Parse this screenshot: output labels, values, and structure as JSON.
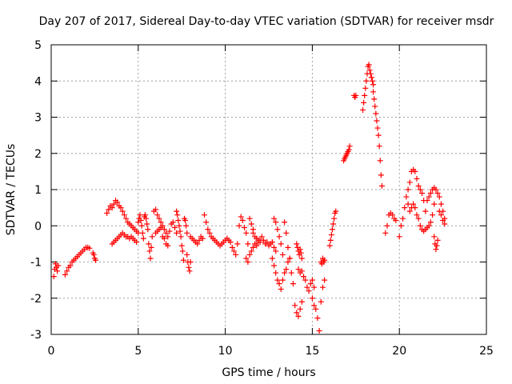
{
  "chart_data": {
    "type": "scatter",
    "title": "Day 207 of 2017, Sidereal Day-to-day VTEC variation (SDTVAR) for receiver msdr",
    "xlabel": "GPS time / hours",
    "ylabel": "SDTVAR / TECUs",
    "xlim": [
      0,
      25
    ],
    "ylim": [
      -3,
      5
    ],
    "xticks": [
      0,
      5,
      10,
      15,
      20,
      25
    ],
    "yticks": [
      -3,
      -2,
      -1,
      0,
      1,
      2,
      3,
      4,
      5
    ],
    "grid": true,
    "marker": "+",
    "marker_color": "#ff0000",
    "series": [
      {
        "name": "SDTVAR",
        "segments": [
          {
            "x": [
              0.15,
              0.2,
              0.25,
              0.3,
              0.35,
              0.4
            ],
            "y": [
              -1.4,
              -1.2,
              -1.05,
              -1.15,
              -1.25,
              -1.1
            ]
          },
          {
            "x": [
              0.8,
              0.9,
              1.0,
              1.1,
              1.2,
              1.3,
              1.4,
              1.5,
              1.6,
              1.7,
              1.8,
              1.9,
              2.0,
              2.1,
              2.2
            ],
            "y": [
              -1.35,
              -1.25,
              -1.15,
              -1.1,
              -1.0,
              -0.95,
              -0.9,
              -0.85,
              -0.8,
              -0.75,
              -0.7,
              -0.65,
              -0.6,
              -0.6,
              -0.62
            ]
          },
          {
            "x": [
              2.4,
              2.45,
              2.5,
              2.55
            ],
            "y": [
              -0.75,
              -0.8,
              -0.9,
              -0.95
            ]
          },
          {
            "x": [
              3.2,
              3.3,
              3.4,
              3.5,
              3.6,
              3.7,
              3.8,
              3.9,
              4.0,
              4.1,
              4.2,
              4.3,
              4.4,
              4.5,
              4.6,
              4.7,
              4.8,
              4.9,
              5.0
            ],
            "y": [
              0.35,
              0.45,
              0.55,
              0.5,
              0.6,
              0.7,
              0.65,
              0.55,
              0.5,
              0.4,
              0.3,
              0.2,
              0.1,
              0.05,
              0.0,
              -0.05,
              -0.1,
              -0.15,
              -0.2
            ]
          },
          {
            "x": [
              3.5,
              3.6,
              3.7,
              3.8,
              3.9,
              4.0,
              4.1,
              4.2,
              4.3,
              4.4,
              4.5,
              4.6,
              4.7,
              4.8,
              4.9
            ],
            "y": [
              -0.5,
              -0.45,
              -0.4,
              -0.35,
              -0.3,
              -0.25,
              -0.2,
              -0.25,
              -0.3,
              -0.3,
              -0.35,
              -0.3,
              -0.35,
              -0.4,
              -0.45
            ]
          },
          {
            "x": [
              5.0,
              5.05,
              5.1,
              5.15,
              5.2,
              5.25,
              5.3,
              5.35,
              5.4,
              5.45,
              5.5,
              5.55,
              5.6,
              5.65,
              5.7,
              5.75,
              5.8
            ],
            "y": [
              0.1,
              0.2,
              0.3,
              0.15,
              0.0,
              -0.2,
              -0.35,
              0.25,
              0.3,
              0.2,
              0.05,
              -0.1,
              -0.5,
              -0.7,
              -0.9,
              -0.6,
              -0.3
            ]
          },
          {
            "x": [
              5.9,
              6.0,
              6.1,
              6.2,
              6.3,
              6.4,
              6.5,
              6.6,
              6.7,
              6.8,
              6.9,
              7.0,
              7.1,
              7.2
            ],
            "y": [
              0.4,
              0.45,
              0.3,
              0.2,
              0.1,
              0.0,
              -0.1,
              -0.2,
              -0.3,
              -0.15,
              0.05,
              0.1,
              -0.05,
              -0.2
            ]
          },
          {
            "x": [
              6.0,
              6.1,
              6.2,
              6.3,
              6.4,
              6.5,
              6.6,
              6.7
            ],
            "y": [
              -0.2,
              -0.15,
              -0.1,
              -0.05,
              -0.3,
              -0.35,
              -0.5,
              -0.55
            ]
          },
          {
            "x": [
              7.2,
              7.25,
              7.3,
              7.35,
              7.4,
              7.45,
              7.5,
              7.55,
              7.6,
              7.65,
              7.7,
              7.75,
              7.8
            ],
            "y": [
              0.4,
              0.3,
              0.15,
              0.0,
              -0.15,
              -0.3,
              -0.55,
              -0.7,
              -0.95,
              0.2,
              0.15,
              0.0,
              -0.2
            ]
          },
          {
            "x": [
              7.8,
              7.85,
              7.9,
              7.95,
              8.0
            ],
            "y": [
              -0.8,
              -1.0,
              -1.15,
              -1.25,
              -1.0
            ]
          },
          {
            "x": [
              8.0,
              8.1,
              8.2,
              8.3,
              8.4,
              8.5,
              8.6,
              8.7
            ],
            "y": [
              -0.3,
              -0.35,
              -0.4,
              -0.45,
              -0.5,
              -0.4,
              -0.3,
              -0.35
            ]
          },
          {
            "x": [
              8.8,
              8.9,
              9.0,
              9.1,
              9.2,
              9.3,
              9.4,
              9.5,
              9.6,
              9.7,
              9.8,
              9.9,
              10.0,
              10.1,
              10.2,
              10.3
            ],
            "y": [
              0.3,
              0.1,
              -0.1,
              -0.2,
              -0.3,
              -0.35,
              -0.4,
              -0.45,
              -0.5,
              -0.55,
              -0.5,
              -0.45,
              -0.4,
              -0.35,
              -0.4,
              -0.45
            ]
          },
          {
            "x": [
              10.4,
              10.5,
              10.6,
              10.7,
              10.8,
              10.9,
              11.0,
              11.1,
              11.2,
              11.3,
              11.4,
              11.5,
              11.6
            ],
            "y": [
              -0.6,
              -0.7,
              -0.8,
              -0.5,
              0.0,
              0.25,
              0.15,
              -0.05,
              -0.2,
              -0.5,
              0.2,
              0.05,
              -0.1
            ]
          },
          {
            "x": [
              11.6,
              11.7,
              11.8,
              11.9,
              12.0,
              12.1,
              12.2,
              12.3,
              12.4,
              12.5,
              12.6,
              12.7,
              12.8,
              12.9
            ],
            "y": [
              -0.2,
              -0.3,
              -0.35,
              -0.4,
              -0.45,
              -0.3,
              -0.4,
              -0.5,
              -0.45,
              -0.55,
              -0.5,
              -0.45,
              -0.6,
              -0.7
            ]
          },
          {
            "x": [
              11.2,
              11.3,
              11.4,
              11.5,
              11.6,
              11.7,
              11.8,
              11.9,
              12.0
            ],
            "y": [
              -0.9,
              -1.0,
              -0.8,
              -0.7,
              -0.6,
              -0.5,
              -0.55,
              -0.45,
              -0.4
            ]
          },
          {
            "x": [
              12.7,
              12.8,
              12.9,
              13.0,
              13.1,
              13.2,
              13.3,
              13.4,
              13.5,
              13.6,
              13.7
            ],
            "y": [
              -0.9,
              -1.1,
              -1.3,
              -1.5,
              -1.6,
              -1.75,
              -1.5,
              -1.3,
              -1.2,
              -1.0,
              -0.9
            ]
          },
          {
            "x": [
              12.8,
              12.9,
              13.0,
              13.1,
              13.2,
              13.3,
              13.4
            ],
            "y": [
              0.2,
              0.1,
              -0.1,
              -0.3,
              -0.5,
              -0.8,
              0.1
            ]
          },
          {
            "x": [
              13.5,
              13.6,
              13.7,
              13.8,
              13.9,
              14.0,
              14.1,
              14.2,
              14.3,
              14.4
            ],
            "y": [
              -0.2,
              -0.6,
              -0.9,
              -1.3,
              -1.6,
              -2.2,
              -2.4,
              -2.5,
              -2.3,
              -2.1
            ]
          },
          {
            "x": [
              14.1,
              14.15,
              14.2,
              14.25,
              14.3,
              14.35,
              14.4
            ],
            "y": [
              -0.5,
              -0.6,
              -0.7,
              -0.8,
              -0.65,
              -0.75,
              -0.9
            ]
          },
          {
            "x": [
              14.2,
              14.3,
              14.4,
              14.5,
              14.6,
              14.7,
              14.8,
              14.9,
              15.0,
              15.1
            ],
            "y": [
              -1.2,
              -1.3,
              -1.25,
              -1.4,
              -1.5,
              -1.7,
              -1.8,
              -1.6,
              -1.5,
              -1.7
            ]
          },
          {
            "x": [
              15.0,
              15.1,
              15.2,
              15.3,
              15.4
            ],
            "y": [
              -2.0,
              -2.2,
              -2.3,
              -2.55,
              -2.9
            ]
          },
          {
            "x": [
              15.5,
              15.6,
              15.7
            ],
            "y": [
              -2.1,
              -1.7,
              -1.5
            ]
          },
          {
            "x": [
              15.5,
              15.55,
              15.6,
              15.65,
              15.7
            ],
            "y": [
              -1.0,
              -1.05,
              -0.9,
              -1.0,
              -0.95
            ]
          },
          {
            "x": [
              16.0,
              16.05,
              16.1,
              16.15,
              16.2,
              16.25,
              16.3,
              16.35
            ],
            "y": [
              -0.55,
              -0.4,
              -0.25,
              -0.1,
              0.05,
              0.2,
              0.35,
              0.4
            ]
          },
          {
            "x": [
              16.8,
              16.85,
              16.9,
              16.95,
              17.0,
              17.05,
              17.1,
              17.15
            ],
            "y": [
              1.8,
              1.85,
              1.9,
              1.95,
              2.0,
              2.05,
              2.1,
              2.2
            ]
          },
          {
            "x": [
              17.4,
              17.45,
              17.5
            ],
            "y": [
              3.6,
              3.55,
              3.6
            ]
          },
          {
            "x": [
              17.9,
              17.95,
              18.0,
              18.05,
              18.1,
              18.15,
              18.2,
              18.25,
              18.3,
              18.35,
              18.4,
              18.45,
              18.5
            ],
            "y": [
              3.2,
              3.4,
              3.6,
              3.8,
              4.0,
              4.2,
              4.4,
              4.45,
              4.3,
              4.2,
              4.1,
              4.0,
              3.9
            ]
          },
          {
            "x": [
              18.5,
              18.55,
              18.6,
              18.65,
              18.7,
              18.75,
              18.8,
              18.85,
              18.9,
              18.95,
              19.0
            ],
            "y": [
              3.7,
              3.5,
              3.3,
              3.1,
              2.9,
              2.7,
              2.5,
              2.2,
              1.8,
              1.4,
              1.1
            ]
          },
          {
            "x": [
              19.2,
              19.3,
              19.4,
              19.5,
              19.6,
              19.7,
              19.8
            ],
            "y": [
              -0.2,
              0.0,
              0.3,
              0.35,
              0.3,
              0.2,
              0.15
            ]
          },
          {
            "x": [
              20.0,
              20.1,
              20.2,
              20.3,
              20.4,
              20.5,
              20.6,
              20.7,
              20.8,
              20.9,
              21.0,
              21.1,
              21.2,
              21.3,
              21.4,
              21.5
            ],
            "y": [
              -0.3,
              0.0,
              0.2,
              0.5,
              0.8,
              1.0,
              1.2,
              1.5,
              1.55,
              1.5,
              1.3,
              1.1,
              1.0,
              0.9,
              0.7,
              0.4
            ]
          },
          {
            "x": [
              20.5,
              20.6,
              20.7,
              20.8,
              20.9,
              21.0,
              21.1,
              21.2,
              21.3,
              21.4,
              21.5,
              21.6,
              21.7,
              21.8,
              21.9,
              22.0
            ],
            "y": [
              0.6,
              0.4,
              0.5,
              0.6,
              0.5,
              0.3,
              0.2,
              0.0,
              -0.1,
              -0.15,
              -0.1,
              -0.05,
              0.0,
              0.1,
              0.3,
              0.6
            ]
          },
          {
            "x": [
              21.6,
              21.7,
              21.8,
              21.9,
              22.0,
              22.1,
              22.2,
              22.3,
              22.4,
              22.5,
              22.6
            ],
            "y": [
              0.7,
              0.8,
              0.9,
              1.0,
              1.05,
              1.0,
              0.9,
              0.8,
              0.6,
              0.4,
              0.2
            ]
          },
          {
            "x": [
              22.0,
              22.05,
              22.1,
              22.15,
              22.2
            ],
            "y": [
              -0.3,
              -0.5,
              -0.65,
              -0.55,
              -0.4
            ]
          },
          {
            "x": [
              22.3,
              22.4,
              22.5,
              22.6
            ],
            "y": [
              0.4,
              0.3,
              0.15,
              0.05
            ]
          }
        ]
      }
    ]
  }
}
